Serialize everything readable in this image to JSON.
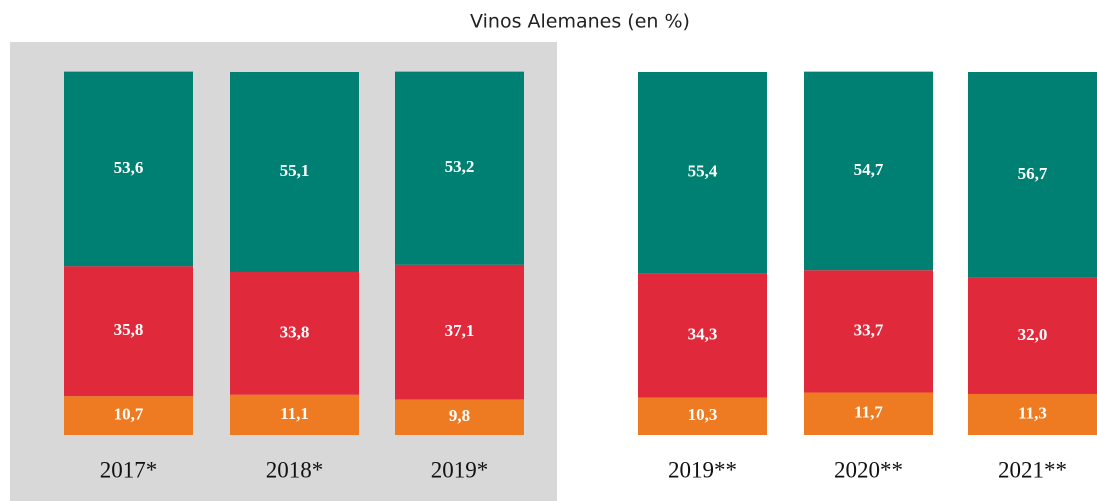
{
  "chart_data": {
    "type": "stacked-bar",
    "title": "Vinos Alemanes (en %)",
    "categories": [
      "2017*",
      "2018*",
      "2019*",
      "2019**",
      "2020**",
      "2021**"
    ],
    "series": [
      {
        "color": "#ee7b22",
        "values": [
          10.7,
          11.1,
          9.8,
          10.3,
          11.7,
          11.3
        ],
        "value_labels": [
          "10,7",
          "11,1",
          "9,8",
          "10,3",
          "11,7",
          "11,3"
        ]
      },
      {
        "color": "#e02a3b",
        "values": [
          35.8,
          33.8,
          37.1,
          34.3,
          33.7,
          32.0
        ],
        "value_labels": [
          "35,8",
          "33,8",
          "37,1",
          "34,3",
          "33,7",
          "32,0"
        ]
      },
      {
        "color": "#008073",
        "values": [
          53.6,
          55.1,
          53.2,
          55.4,
          54.7,
          56.7
        ],
        "value_labels": [
          "53,6",
          "55,1",
          "53,2",
          "55,4",
          "54,7",
          "56,7"
        ]
      }
    ]
  }
}
